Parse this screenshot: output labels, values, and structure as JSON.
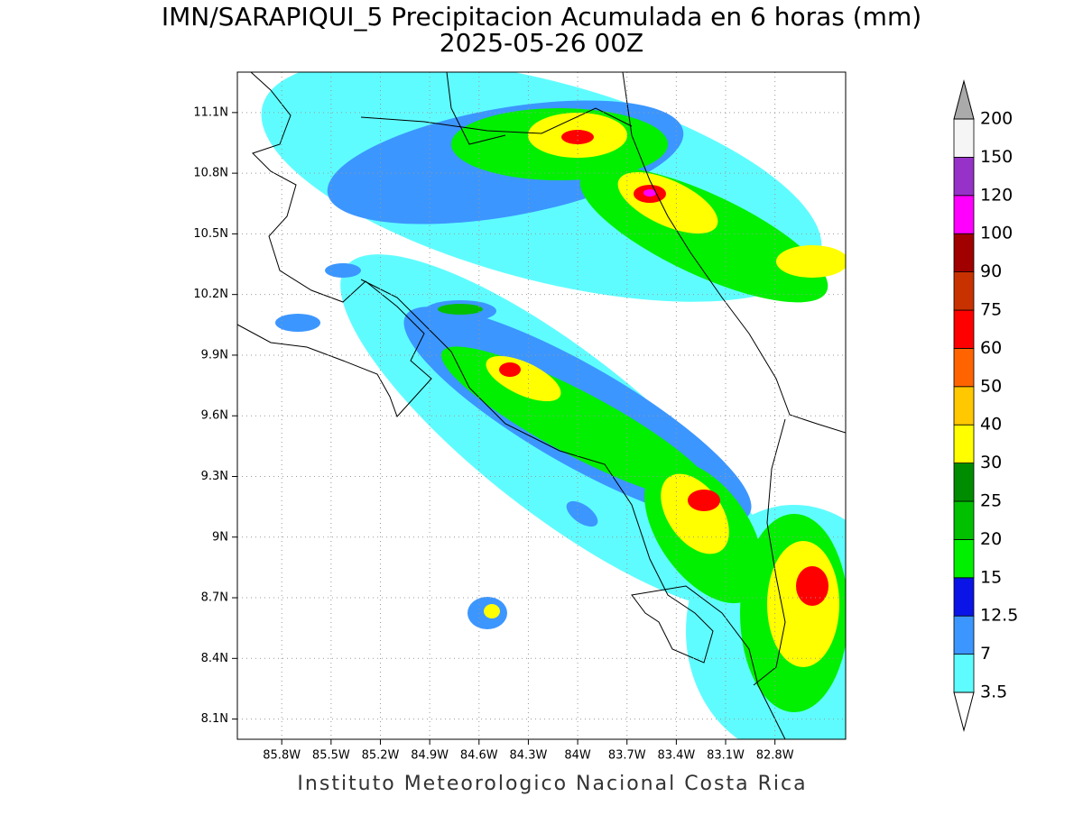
{
  "title": "IMN/SARAPIQUI_5 Precipitacion Acumulada en 6 horas (mm)",
  "subtitle": "2025-05-26 00Z",
  "footer": "Instituto Meteorologico Nacional Costa Rica",
  "map": {
    "lonlim": [
      -86.07,
      -82.37
    ],
    "latlim": [
      8.0,
      11.3
    ],
    "lon_ticks": [
      {
        "value": -85.8,
        "label": "85.8W"
      },
      {
        "value": -85.5,
        "label": "85.5W"
      },
      {
        "value": -85.2,
        "label": "85.2W"
      },
      {
        "value": -84.9,
        "label": "84.9W"
      },
      {
        "value": -84.6,
        "label": "84.6W"
      },
      {
        "value": -84.3,
        "label": "84.3W"
      },
      {
        "value": -84.0,
        "label": "84W"
      },
      {
        "value": -83.7,
        "label": "83.7W"
      },
      {
        "value": -83.4,
        "label": "83.4W"
      },
      {
        "value": -83.1,
        "label": "83.1W"
      },
      {
        "value": -82.8,
        "label": "82.8W"
      }
    ],
    "lat_ticks": [
      {
        "value": 8.1,
        "label": "8.1N"
      },
      {
        "value": 8.4,
        "label": "8.4N"
      },
      {
        "value": 8.7,
        "label": "8.7N"
      },
      {
        "value": 9.0,
        "label": "9N"
      },
      {
        "value": 9.3,
        "label": "9.3N"
      },
      {
        "value": 9.6,
        "label": "9.6N"
      },
      {
        "value": 9.9,
        "label": "9.9N"
      },
      {
        "value": 10.2,
        "label": "10.2N"
      },
      {
        "value": 10.5,
        "label": "10.5N"
      },
      {
        "value": 10.8,
        "label": "10.8N"
      },
      {
        "value": 11.1,
        "label": "11.1N"
      }
    ],
    "grid": true
  },
  "colorbar": {
    "levels": [
      3.5,
      7,
      12.5,
      15,
      20,
      25,
      30,
      40,
      50,
      60,
      75,
      90,
      100,
      120,
      150,
      200
    ],
    "colors": [
      "#5ffcff",
      "#3c96ff",
      "#0a14e6",
      "#00f000",
      "#00c000",
      "#008c00",
      "#ffff00",
      "#ffc800",
      "#ff6400",
      "#ff0000",
      "#c83200",
      "#a00000",
      "#ff00ff",
      "#9632c8",
      "#f5f5f5"
    ],
    "under_color": "#ffffff",
    "over_color": "#aaaaaa"
  }
}
